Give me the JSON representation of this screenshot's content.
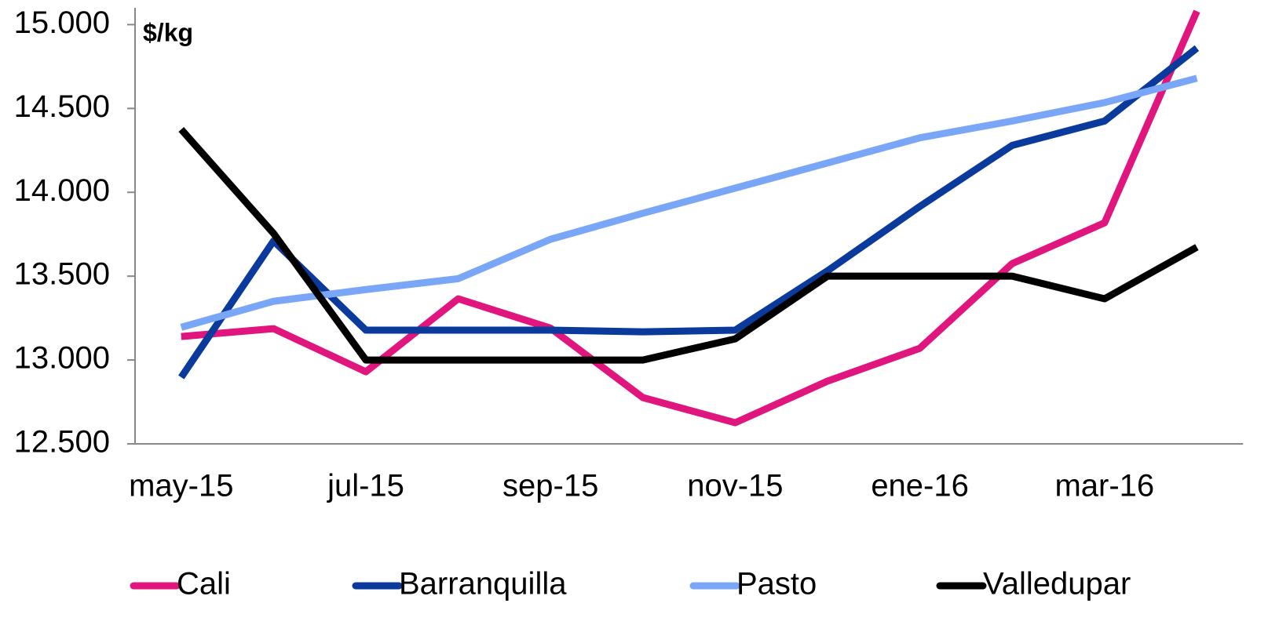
{
  "chart_data": {
    "type": "line",
    "annotation": "$/kg",
    "categories": [
      "may-15",
      null,
      "jul-15",
      null,
      "sep-15",
      null,
      "nov-15",
      null,
      "ene-16",
      null,
      "mar-16",
      null
    ],
    "series": [
      {
        "name": "Cali",
        "color": "#e0167e",
        "values": [
          13140,
          13187,
          12930,
          13365,
          13190,
          12776,
          12626,
          12874,
          13070,
          13575,
          13818,
          15080
        ]
      },
      {
        "name": "Barranquilla",
        "color": "#0a3a9c",
        "values": [
          12897,
          13710,
          13178,
          13178,
          13178,
          13168,
          13178,
          13532,
          13916,
          14280,
          14425,
          14860
        ]
      },
      {
        "name": "Pasto",
        "color": "#79a6f7",
        "values": [
          13195,
          13350,
          13420,
          13485,
          13720,
          13875,
          14025,
          14175,
          14325,
          14425,
          14535,
          14680
        ]
      },
      {
        "name": "Valledupar",
        "color": "#000000",
        "values": [
          14375,
          13755,
          13000,
          13000,
          13000,
          13000,
          13126,
          13500,
          13500,
          13500,
          13365,
          13673
        ]
      }
    ],
    "ylim": [
      12500,
      15100
    ],
    "yticks": [
      {
        "value": 12500,
        "label": "12.500"
      },
      {
        "value": 13000,
        "label": "13.000"
      },
      {
        "value": 13500,
        "label": "13.500"
      },
      {
        "value": 14000,
        "label": "14.000"
      },
      {
        "value": 14500,
        "label": "14.500"
      },
      {
        "value": 15000,
        "label": "15.000"
      }
    ],
    "grid": false,
    "legend": "bottom"
  }
}
